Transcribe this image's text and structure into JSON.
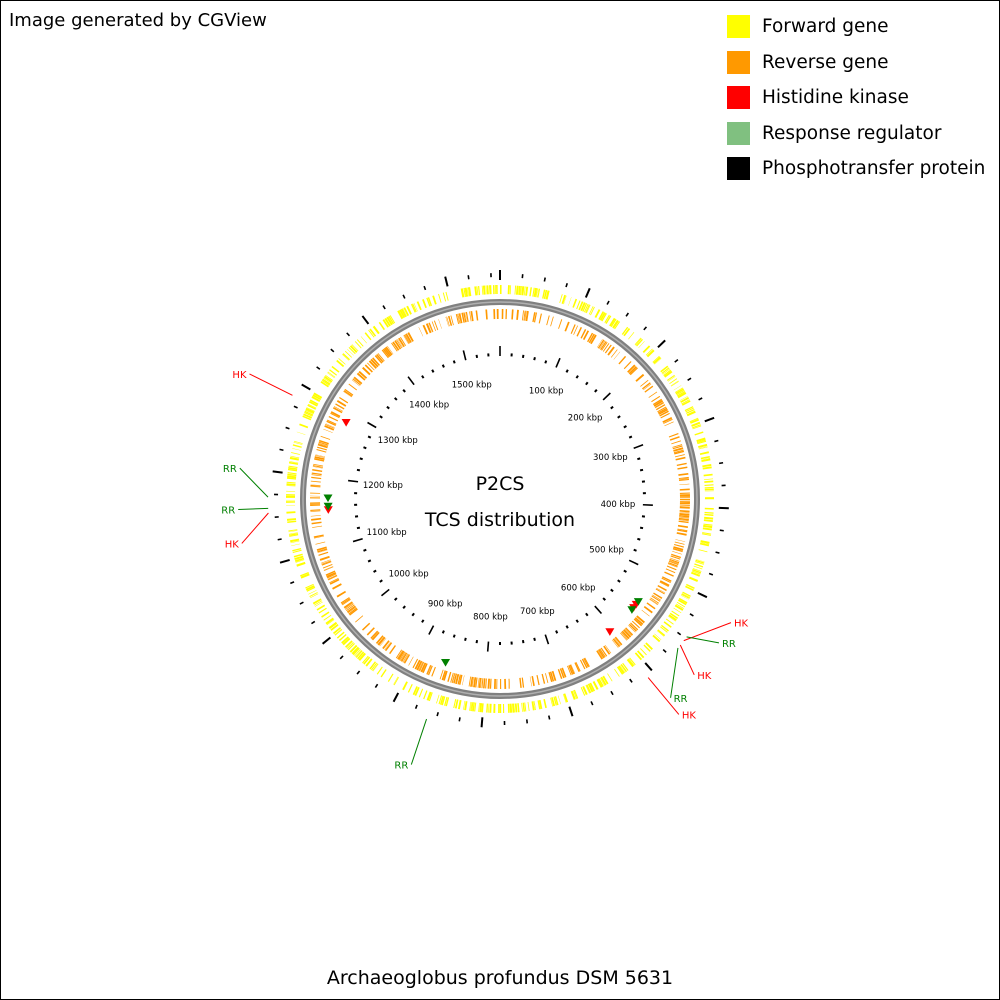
{
  "credit": "Image generated by CGView",
  "legend": [
    {
      "label": "Forward gene",
      "color": "#ffff00"
    },
    {
      "label": "Reverse gene",
      "color": "#ff9900"
    },
    {
      "label": "Histidine kinase",
      "color": "#ff0000"
    },
    {
      "label": "Response regulator",
      "color": "#80c080"
    },
    {
      "label": "Phosphotransfer protein",
      "color": "#000000"
    }
  ],
  "center_title": "P2CS",
  "center_subtitle": "TCS distribution",
  "organism": "Archaeoglobus profundus DSM 5631",
  "genome": {
    "length_kbp": 1560,
    "tick_labels": [
      "100 kbp",
      "200 kbp",
      "300 kbp",
      "400 kbp",
      "500 kbp",
      "600 kbp",
      "700 kbp",
      "800 kbp",
      "900 kbp",
      "1000 kbp",
      "1100 kbp",
      "1200 kbp",
      "1300 kbp",
      "1400 kbp",
      "1500 kbp"
    ],
    "backbone_color": "#808080",
    "features": [
      {
        "type": "HK",
        "position_kbp": 553,
        "label": "HK",
        "color": "#ff0000"
      },
      {
        "type": "RR",
        "position_kbp": 548,
        "label": "RR",
        "color": "#008000"
      },
      {
        "type": "HK",
        "position_kbp": 559,
        "label": "HK",
        "color": "#ff0000"
      },
      {
        "type": "RR",
        "position_kbp": 563,
        "label": "RR",
        "color": "#008000"
      },
      {
        "type": "HK",
        "position_kbp": 608,
        "label": "HK",
        "color": "#ff0000"
      },
      {
        "type": "RR",
        "position_kbp": 860,
        "label": "RR",
        "color": "#008000"
      },
      {
        "type": "HK",
        "position_kbp": 1155,
        "label": "HK",
        "color": "#ff0000"
      },
      {
        "type": "RR",
        "position_kbp": 1160,
        "label": "RR",
        "color": "#008000"
      },
      {
        "type": "RR",
        "position_kbp": 1172,
        "label": "RR",
        "color": "#008000"
      },
      {
        "type": "HK",
        "position_kbp": 1285,
        "label": "HK",
        "color": "#ff0000"
      }
    ]
  }
}
